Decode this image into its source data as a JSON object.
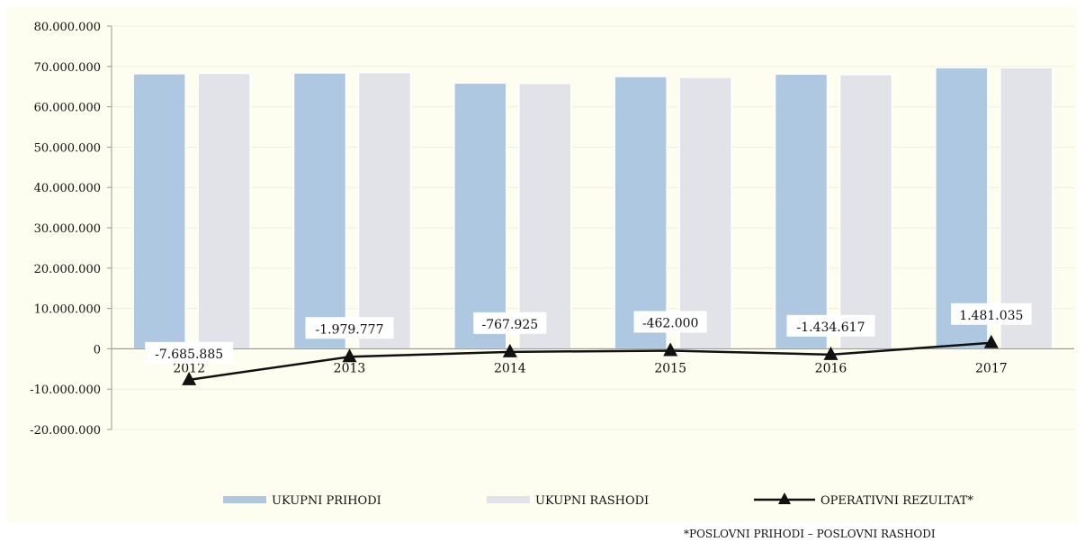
{
  "footnote": "*POSLOVNI PRIHODI – POSLOVNI RASHODI",
  "colors": {
    "background": "#fdfdf0",
    "prihodi": "#adc8e0",
    "rashodi": "#e1e3e8",
    "line": "#111111",
    "grid": "#f0efdc"
  },
  "chart_data": {
    "type": "bar",
    "categories": [
      "2012",
      "2013",
      "2014",
      "2015",
      "2016",
      "2017"
    ],
    "series": [
      {
        "name": "UKUPNI PRIHODI",
        "type": "bar",
        "values": [
          68200000,
          68400000,
          65900000,
          67500000,
          68100000,
          69700000
        ]
      },
      {
        "name": "UKUPNI RASHODI",
        "type": "bar",
        "values": [
          68300000,
          68500000,
          65800000,
          67300000,
          68000000,
          69700000
        ]
      },
      {
        "name": "OPERATIVNI REZULTAT*",
        "type": "line",
        "marker": "triangle",
        "values": [
          -7685885,
          -1979777,
          -767925,
          -462000,
          -1434617,
          1481035
        ]
      }
    ],
    "data_labels": [
      "-7.685.885",
      "-1.979.777",
      "-767.925",
      "-462.000",
      "-1.434.617",
      "1.481.035"
    ],
    "yticks": [
      "80.000.000",
      "70.000.000",
      "60.000.000",
      "50.000.000",
      "40.000.000",
      "30.000.000",
      "20.000.000",
      "10.000.000",
      "0",
      "-10.000.000",
      "-20.000.000"
    ],
    "ylim": [
      -20000000,
      80000000
    ],
    "grid": true,
    "legend": "bottom"
  }
}
